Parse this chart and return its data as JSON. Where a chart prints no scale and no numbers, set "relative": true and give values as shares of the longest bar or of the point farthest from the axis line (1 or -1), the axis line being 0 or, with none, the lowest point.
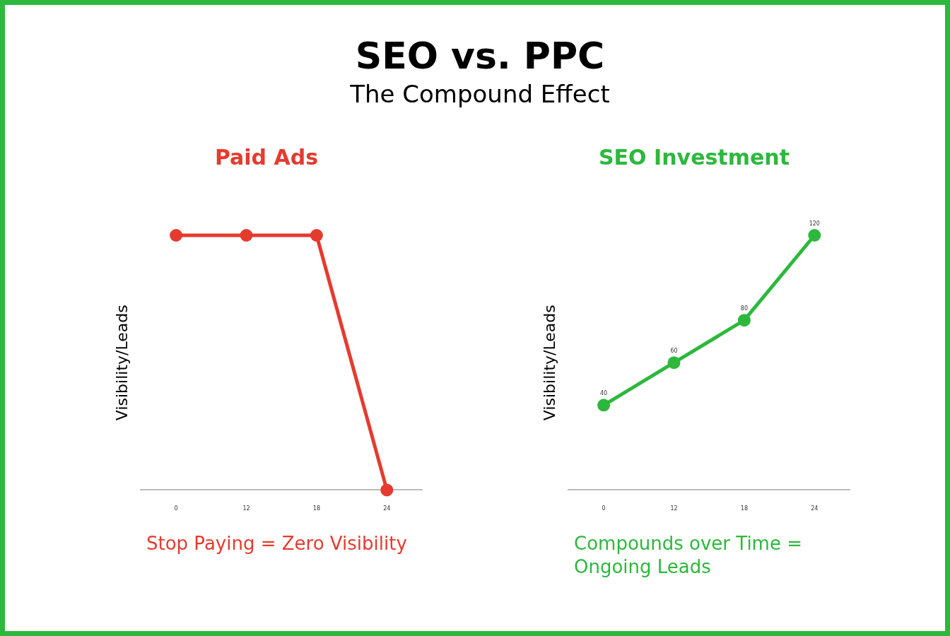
{
  "chart_data": [
    {
      "type": "other",
      "title": "SEO vs. PPC",
      "subtitle": "The Compound Effect"
    },
    {
      "type": "line",
      "title": "Paid Ads",
      "ylabel": "Visibility/Leads",
      "categories": [
        "0",
        "12",
        "18",
        "24"
      ],
      "relative": true,
      "marker": "circle",
      "series": [
        {
          "color": "#e53b2f",
          "values": [
            1,
            1,
            1,
            0
          ]
        }
      ],
      "annotations": [
        "Stop Paying = Zero Visibility"
      ]
    },
    {
      "type": "line",
      "title": "SEO Investment",
      "ylabel": "Visibility/Leads",
      "categories": [
        "0",
        "12",
        "18",
        "24"
      ],
      "tick_labels": "x",
      "marker": "circle",
      "data_labels": true,
      "series": [
        {
          "color": "#2db83d",
          "values": [
            40,
            60,
            80,
            120
          ]
        }
      ],
      "annotations": [
        "Compounds over Time = Ongoing Leads"
      ]
    }
  ]
}
